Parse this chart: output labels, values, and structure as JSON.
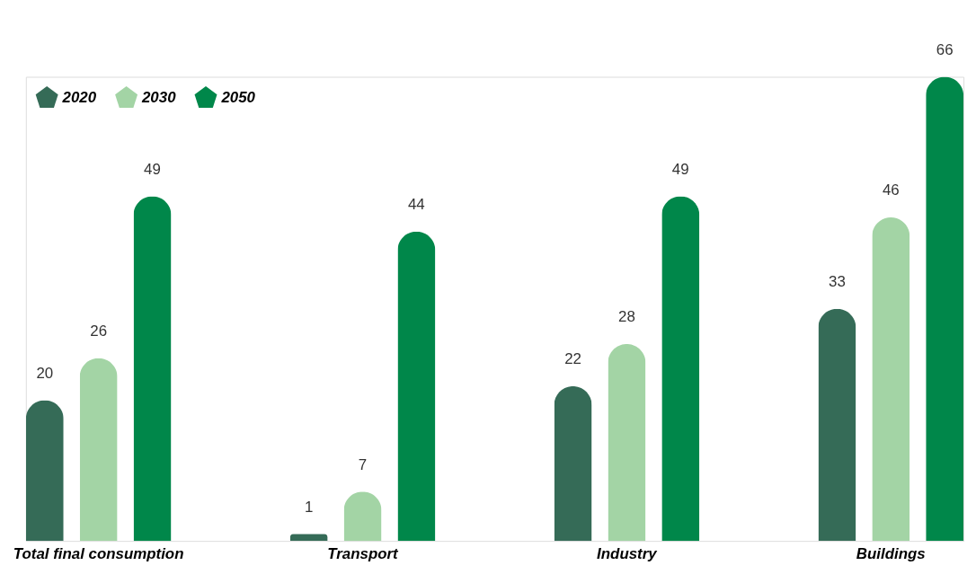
{
  "chart_data": {
    "type": "bar",
    "categories": [
      "Total final consumption",
      "Transport",
      "Industry",
      "Buildings"
    ],
    "series": [
      {
        "name": "2020",
        "color": "#356b57",
        "values": [
          20,
          1,
          22,
          33
        ]
      },
      {
        "name": "2030",
        "color": "#a3d4a5",
        "values": [
          26,
          7,
          28,
          46
        ]
      },
      {
        "name": "2050",
        "color": "#00874a",
        "values": [
          49,
          44,
          49,
          66
        ]
      }
    ],
    "data_labels": true,
    "legend": "top left",
    "grid": false
  }
}
